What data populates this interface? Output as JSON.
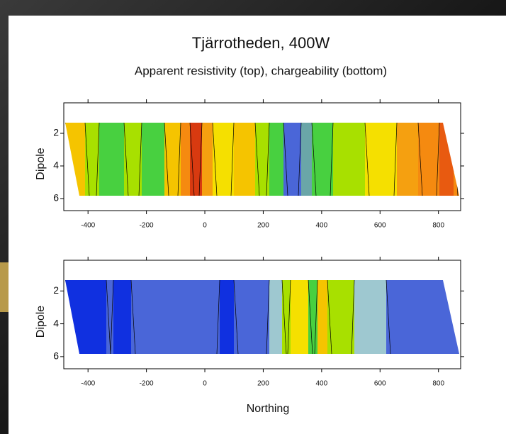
{
  "title": "Tjärrotheden, 400W",
  "subtitle": "Apparent resistivity (top), chargeability (bottom)",
  "chart_data": [
    {
      "type": "contour",
      "ylabel": "Dipole",
      "xlim": [
        -483,
        876
      ],
      "xticks": [
        -400,
        -200,
        0,
        200,
        400,
        600,
        800
      ],
      "ylim": [
        6.74,
        0.13
      ],
      "yticks": [
        2,
        4,
        6
      ]
    },
    {
      "type": "contour",
      "ylabel": "Dipole",
      "xlabel": "Northing",
      "xlim": [
        -483,
        876
      ],
      "xticks": [
        -400,
        -200,
        0,
        200,
        400,
        600,
        800
      ],
      "ylim": [
        6.74,
        0.13
      ],
      "yticks": [
        2,
        4,
        6
      ]
    }
  ]
}
